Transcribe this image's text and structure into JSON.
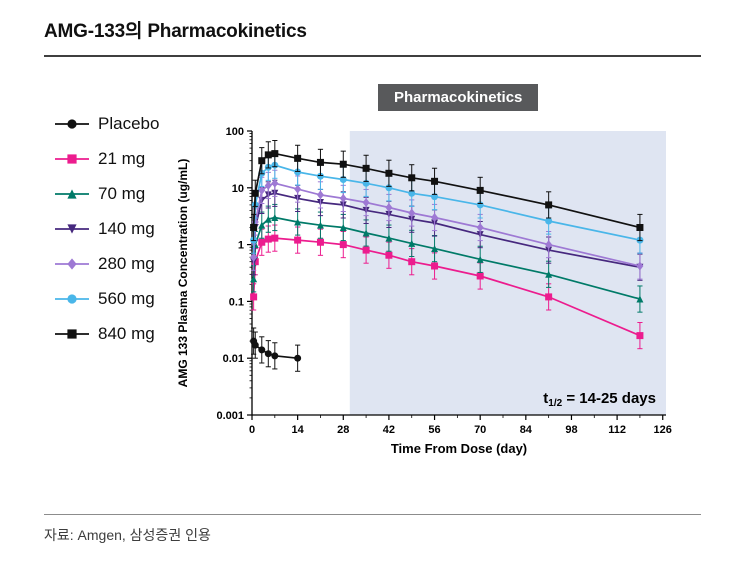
{
  "header": {
    "title": "AMG-133의 Pharmacokinetics"
  },
  "footer": {
    "source": "자료: Amgen, 삼성증권 인용"
  },
  "chart": {
    "badge": "Pharmacokinetics",
    "badge_bg": "#58595b"
  },
  "chart_data": {
    "type": "line",
    "title": "Pharmacokinetics",
    "xlabel": "Time From Dose (day)",
    "ylabel": "AMG 133 Plasma Concentration (ug/mL)",
    "x_ticks": [
      0,
      14,
      28,
      42,
      56,
      70,
      84,
      98,
      112,
      126
    ],
    "y_ticks": [
      100,
      10,
      1,
      0.1,
      0.01,
      0.001
    ],
    "xlim": [
      0,
      127
    ],
    "ylim_log": [
      0.001,
      100
    ],
    "y_scale": "log",
    "grid": false,
    "legend_position": "left",
    "shaded_region": {
      "x_start": 30,
      "x_end": 127,
      "color": "#dfe5f2"
    },
    "annotation": {
      "prefix": "t",
      "sub": "1/2",
      "suffix": " = 14-25 days"
    },
    "error_factor": 1.7,
    "x": [
      0.5,
      1,
      3,
      5,
      7,
      14,
      21,
      28,
      35,
      42,
      49,
      56,
      70,
      91,
      119
    ],
    "series": [
      {
        "name": "Placebo",
        "color": "#111111",
        "marker": "circle",
        "values": [
          0.02,
          0.017,
          0.014,
          0.012,
          0.011,
          0.01,
          null,
          null,
          null,
          null,
          null,
          null,
          null,
          null,
          null
        ]
      },
      {
        "name": "21 mg",
        "color": "#ec1c8e",
        "marker": "square",
        "values": [
          0.12,
          0.5,
          1.1,
          1.25,
          1.3,
          1.2,
          1.1,
          1.0,
          0.8,
          0.65,
          0.5,
          0.42,
          0.28,
          0.12,
          0.025
        ]
      },
      {
        "name": "70 mg",
        "color": "#007a68",
        "marker": "triangle-up",
        "values": [
          0.25,
          1,
          2.2,
          2.8,
          3,
          2.5,
          2.2,
          2.0,
          1.6,
          1.3,
          1.05,
          0.85,
          0.55,
          0.3,
          0.11
        ]
      },
      {
        "name": "140 mg",
        "color": "#46287e",
        "marker": "triangle-down",
        "values": [
          0.5,
          2,
          6,
          7.5,
          8,
          6.5,
          5.5,
          5.0,
          4.0,
          3.4,
          2.8,
          2.4,
          1.5,
          0.8,
          0.4
        ]
      },
      {
        "name": "280 mg",
        "color": "#9e79d4",
        "marker": "diamond",
        "values": [
          0.6,
          2.5,
          9,
          11,
          12,
          9.5,
          7.5,
          6.5,
          5.5,
          4.5,
          3.6,
          3.0,
          2.0,
          1.0,
          0.42
        ]
      },
      {
        "name": "560 mg",
        "color": "#49b6e9",
        "marker": "circle",
        "values": [
          1.2,
          5,
          18,
          23,
          25,
          19,
          16,
          14,
          12,
          10,
          8,
          7,
          5,
          2.6,
          1.2
        ]
      },
      {
        "name": "840 mg",
        "color": "#111111",
        "marker": "square",
        "values": [
          2,
          8,
          30,
          38,
          40,
          33,
          28,
          26,
          22,
          18,
          15,
          13,
          9,
          5,
          2
        ]
      }
    ]
  }
}
